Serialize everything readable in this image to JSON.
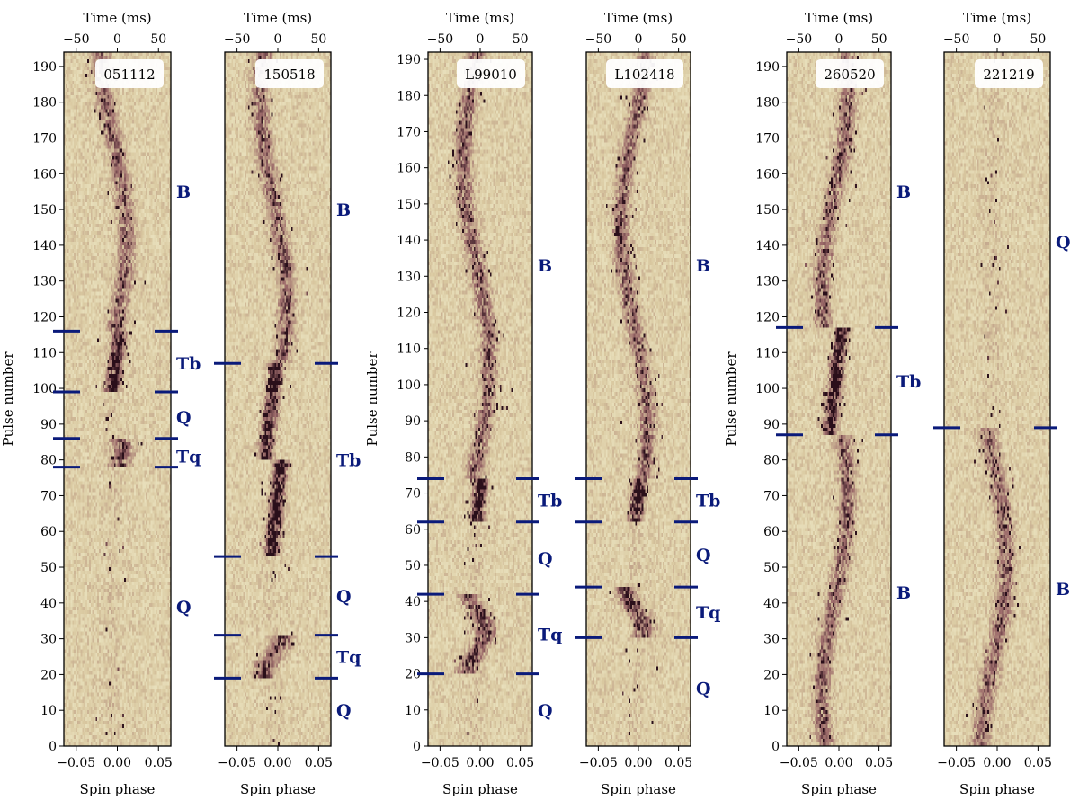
{
  "figure": {
    "colors": {
      "background_low": "#f3f0cf",
      "background_high": "#d9c8a0",
      "signal_mid": "#9c6a6a",
      "signal_high": "#2a0f1a",
      "marker": "#0a1a7a",
      "mode_label": "#0a1a7a",
      "axis": "#000000"
    }
  },
  "chart_data": [
    {
      "type": "heatmap",
      "label": "051112",
      "top_axis_label": "Time (ms)",
      "top_ticks": [
        -50,
        0,
        50
      ],
      "xlabel": "Spin phase",
      "x_ticks": [
        -0.05,
        0.0,
        0.05
      ],
      "xlim": [
        -0.065,
        0.065
      ],
      "ylabel": "Pulse number",
      "y_ticks": [
        0,
        10,
        20,
        30,
        40,
        50,
        60,
        70,
        80,
        90,
        100,
        110,
        120,
        130,
        140,
        150,
        160,
        170,
        180,
        190
      ],
      "ylim": [
        0,
        194
      ],
      "transitions": [
        116,
        99,
        86,
        78
      ],
      "modes": [
        {
          "label": "B",
          "y": 155
        },
        {
          "label": "Tb",
          "y": 107
        },
        {
          "label": "Q",
          "y": 92
        },
        {
          "label": "Tq",
          "y": 81
        },
        {
          "label": "Q",
          "y": 39
        }
      ]
    },
    {
      "type": "heatmap",
      "label": "150518",
      "top_axis_label": "Time (ms)",
      "top_ticks": [
        -50,
        0,
        50
      ],
      "xlabel": "Spin phase",
      "x_ticks": [
        -0.05,
        0.0,
        0.05
      ],
      "xlim": [
        -0.065,
        0.065
      ],
      "ylabel": "",
      "y_ticks": [],
      "ylim": [
        0,
        194
      ],
      "transitions": [
        107,
        53,
        31,
        19
      ],
      "modes": [
        {
          "label": "B",
          "y": 150
        },
        {
          "label": "Tb",
          "y": 80
        },
        {
          "label": "Q",
          "y": 42
        },
        {
          "label": "Tq",
          "y": 25
        },
        {
          "label": "Q",
          "y": 10
        }
      ]
    },
    {
      "type": "heatmap",
      "label": "L99010",
      "top_axis_label": "Time (ms)",
      "top_ticks": [
        -50,
        0,
        50
      ],
      "xlabel": "Spin phase",
      "x_ticks": [
        -0.05,
        0.0,
        0.05
      ],
      "xlim": [
        -0.065,
        0.065
      ],
      "ylabel": "Pulse number",
      "y_ticks": [
        0,
        10,
        20,
        30,
        40,
        50,
        60,
        70,
        80,
        90,
        100,
        110,
        120,
        130,
        140,
        150,
        160,
        170,
        180,
        190
      ],
      "ylim": [
        0,
        192
      ],
      "transitions": [
        74,
        62,
        42,
        20
      ],
      "modes": [
        {
          "label": "B",
          "y": 133
        },
        {
          "label": "Tb",
          "y": 68
        },
        {
          "label": "Q",
          "y": 52
        },
        {
          "label": "Tq",
          "y": 31
        },
        {
          "label": "Q",
          "y": 10
        }
      ]
    },
    {
      "type": "heatmap",
      "label": "L102418",
      "top_axis_label": "Time (ms)",
      "top_ticks": [
        -50,
        0,
        50
      ],
      "xlabel": "Spin phase",
      "x_ticks": [
        -0.05,
        0.0,
        0.05
      ],
      "xlim": [
        -0.065,
        0.065
      ],
      "ylabel": "",
      "y_ticks": [],
      "ylim": [
        0,
        192
      ],
      "transitions": [
        74,
        62,
        44,
        30
      ],
      "modes": [
        {
          "label": "B",
          "y": 133
        },
        {
          "label": "Tb",
          "y": 68
        },
        {
          "label": "Q",
          "y": 53
        },
        {
          "label": "Tq",
          "y": 37
        },
        {
          "label": "Q",
          "y": 16
        }
      ]
    },
    {
      "type": "heatmap",
      "label": "260520",
      "top_axis_label": "Time (ms)",
      "top_ticks": [
        -50,
        0,
        50
      ],
      "xlabel": "Spin phase",
      "x_ticks": [
        -0.05,
        0.0,
        0.05
      ],
      "xlim": [
        -0.065,
        0.065
      ],
      "ylabel": "Pulse number",
      "y_ticks": [
        0,
        10,
        20,
        30,
        40,
        50,
        60,
        70,
        80,
        90,
        100,
        110,
        120,
        130,
        140,
        150,
        160,
        170,
        180,
        190
      ],
      "ylim": [
        0,
        194
      ],
      "transitions": [
        117,
        87
      ],
      "modes": [
        {
          "label": "B",
          "y": 155
        },
        {
          "label": "Tb",
          "y": 102
        },
        {
          "label": "B",
          "y": 43
        }
      ]
    },
    {
      "type": "heatmap",
      "label": "221219",
      "top_axis_label": "Time (ms)",
      "top_ticks": [
        -50,
        0,
        50
      ],
      "xlabel": "Spin phase",
      "x_ticks": [
        -0.05,
        0.0,
        0.05
      ],
      "xlim": [
        -0.065,
        0.065
      ],
      "ylabel": "",
      "y_ticks": [],
      "ylim": [
        0,
        194
      ],
      "transitions": [
        89
      ],
      "modes": [
        {
          "label": "Q",
          "y": 141
        },
        {
          "label": "B",
          "y": 44
        }
      ]
    }
  ]
}
